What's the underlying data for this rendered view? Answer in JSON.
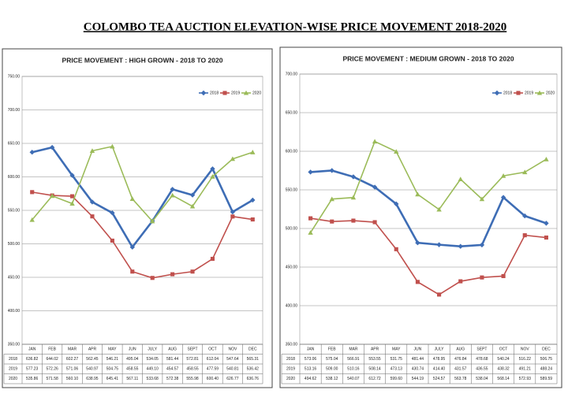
{
  "title": "COLOMBO TEA AUCTION ELEVATION-WISE PRICE MOVEMENT 2018-2020",
  "chart_data": [
    {
      "type": "line",
      "title": "PRICE MOVEMENT : HIGH GROWN  - 2018 TO 2020",
      "categories": [
        "JAN",
        "FEB",
        "MAR",
        "APR",
        "MAY",
        "JUN",
        "JULY",
        "AUG",
        "SEPT",
        "OCT",
        "NOV",
        "DEC"
      ],
      "series": [
        {
          "name": "2018",
          "color": "#3e6db5",
          "marker": "diamond",
          "values": [
            636.82,
            644.02,
            602.27,
            562.45,
            546.21,
            495.04,
            534.05,
            581.44,
            572.81,
            612.04,
            547.64,
            565.31
          ],
          "value_labels": [
            "636.82",
            "644.02",
            "602.27",
            "562.45",
            "546.21",
            "495.04",
            "534.05",
            "581.44",
            "572.81",
            "612.04",
            "547.64",
            "565.31"
          ]
        },
        {
          "name": "2019",
          "color": "#c0504d",
          "marker": "square",
          "values": [
            577.23,
            572.26,
            571.06,
            540.97,
            504.75,
            458.55,
            449.1,
            454.57,
            458.55,
            477.59,
            540.81,
            536.42
          ],
          "value_labels": [
            "577.23",
            "572.26",
            "571.06",
            "540.97",
            "504.75",
            "458.55",
            "449.10",
            "454.57",
            "458.55",
            "477.59",
            "540.81",
            "536.42"
          ]
        },
        {
          "name": "2020",
          "color": "#9bbb59",
          "marker": "triangle",
          "values": [
            535.86,
            571.58,
            560.1,
            638.95,
            645.41,
            567.11,
            533.68,
            572.38,
            555.98,
            600.4,
            626.77,
            636.76
          ],
          "value_labels": [
            "535.86",
            "571.58",
            "560.10",
            "638.95",
            "645.41",
            "567.11",
            "533.68",
            "572.38",
            "555.98",
            "600.40",
            "626.77",
            "636.76"
          ]
        }
      ],
      "ylim": [
        350,
        750
      ],
      "yticks": [
        {
          "value": 350,
          "label": "350.00"
        },
        {
          "value": 400,
          "label": "400.00"
        },
        {
          "value": 450,
          "label": "450.00"
        },
        {
          "value": 500,
          "label": "500.00"
        },
        {
          "value": 550,
          "label": "550.00"
        },
        {
          "value": 600,
          "label": "600.00"
        },
        {
          "value": 650,
          "label": "650.00"
        },
        {
          "value": 700,
          "label": "700.00"
        },
        {
          "value": 750,
          "label": "750.00"
        }
      ],
      "grid": true,
      "legend": "upper right"
    },
    {
      "type": "line",
      "title": "PRICE MOVEMENT : MEDIUM GROWN  - 2018 TO 2020",
      "categories": [
        "JAN",
        "FEB",
        "MAR",
        "APR",
        "MAY",
        "JUN",
        "JULY",
        "AUG",
        "SEPT",
        "OCT",
        "NOV",
        "DEC"
      ],
      "series": [
        {
          "name": "2018",
          "color": "#3e6db5",
          "marker": "diamond",
          "values": [
            573.06,
            575.04,
            566.91,
            553.55,
            531.75,
            481.44,
            478.95,
            476.84,
            478.68,
            540.24,
            516.22,
            506.75
          ],
          "value_labels": [
            "573.06",
            "575.04",
            "566.91",
            "553.55",
            "531.75",
            "481.44",
            "478.95",
            "476.84",
            "478.68",
            "540.24",
            "516.22",
            "506.75"
          ]
        },
        {
          "name": "2019",
          "color": "#c0504d",
          "marker": "square",
          "values": [
            513.16,
            509,
            510.16,
            508.14,
            473.13,
            430.74,
            414.4,
            431.57,
            436.55,
            438.32,
            491.21,
            488.24
          ],
          "value_labels": [
            "513.16",
            "509.00",
            "510.16",
            "508.14",
            "473.13",
            "430.74",
            "414.40",
            "431.57",
            "436.55",
            "438.32",
            "491.21",
            "488.24"
          ]
        },
        {
          "name": "2020",
          "color": "#9bbb59",
          "marker": "triangle",
          "values": [
            494.62,
            538.12,
            540.07,
            612.72,
            599.6,
            544.19,
            524.57,
            563.78,
            538.04,
            568.14,
            572.93,
            589.59
          ],
          "value_labels": [
            "494.62",
            "538.12",
            "540.07",
            "612.72",
            "599.60",
            "544.19",
            "524.57",
            "563.78",
            "538.04",
            "568.14",
            "572.93",
            "589.59"
          ]
        }
      ],
      "ylim": [
        350,
        700
      ],
      "yticks": [
        {
          "value": 350,
          "label": "350.00"
        },
        {
          "value": 400,
          "label": "400.00"
        },
        {
          "value": 450,
          "label": "450.00"
        },
        {
          "value": 500,
          "label": "500.00"
        },
        {
          "value": 550,
          "label": "550.00"
        },
        {
          "value": 600,
          "label": "600.00"
        },
        {
          "value": 650,
          "label": "650.00"
        },
        {
          "value": 700,
          "label": "700.00"
        }
      ],
      "grid": true,
      "legend": "upper right"
    }
  ]
}
